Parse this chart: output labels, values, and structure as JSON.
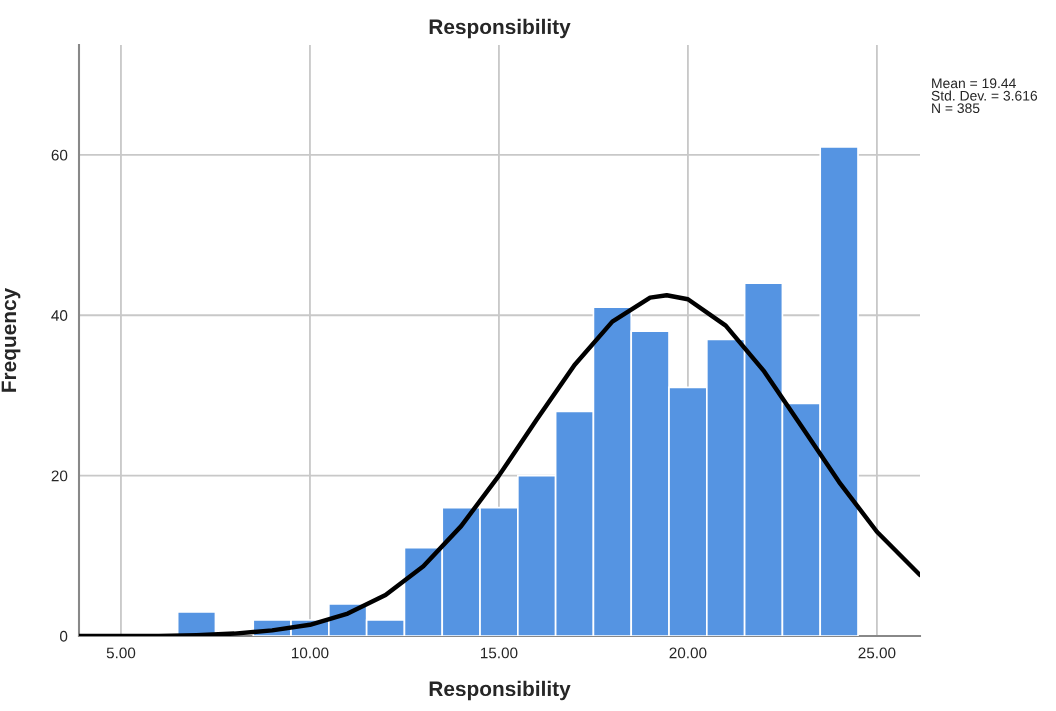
{
  "chart_data": {
    "type": "histogram",
    "title": "Responsibility",
    "xlabel": "Responsibility",
    "ylabel": "Frequency",
    "bins": [
      6.5,
      7.5,
      8.5,
      9.5,
      10.5,
      11.5,
      12.5,
      13.5,
      14.5,
      15.5,
      16.5,
      17.5,
      18.5,
      19.5,
      20.5,
      21.5,
      22.5,
      23.5,
      24.5
    ],
    "series": [
      {
        "color": "#5594e2",
        "values": [
          3,
          0,
          2,
          2,
          4,
          2,
          11,
          16,
          16,
          20,
          28,
          41,
          38,
          31,
          37,
          44,
          29,
          61
        ]
      },
      {
        "type": "line",
        "color": "#000000",
        "x": [
          3.89,
          5,
          6,
          7,
          8,
          9,
          10,
          11,
          12,
          13,
          14,
          15,
          16,
          17,
          18,
          19,
          19.44,
          20,
          21,
          22,
          23,
          24,
          25,
          26.14
        ],
        "values": [
          0.0,
          0.0,
          0.0,
          0.1,
          0.3,
          0.7,
          1.4,
          2.8,
          5.1,
          8.7,
          13.7,
          20.0,
          27.0,
          33.8,
          39.2,
          42.2,
          42.5,
          42.0,
          38.7,
          33.1,
          26.2,
          19.2,
          13.0,
          7.6
        ]
      }
    ],
    "xlim": [
      3.89,
      26.14
    ],
    "ylim": [
      0,
      73.7
    ],
    "xticks": [
      {
        "value": 5,
        "label": "5.00"
      },
      {
        "value": 10,
        "label": "10.00"
      },
      {
        "value": 15,
        "label": "15.00"
      },
      {
        "value": 20,
        "label": "20.00"
      },
      {
        "value": 25,
        "label": "25.00"
      }
    ],
    "yticks": [
      0,
      20,
      40,
      60
    ],
    "annotations": [
      "Mean = 19.44\nStd. Dev. = 3.616\nN = 385"
    ],
    "grid": true,
    "legend": false,
    "marker": "none",
    "line_style": "solid"
  }
}
